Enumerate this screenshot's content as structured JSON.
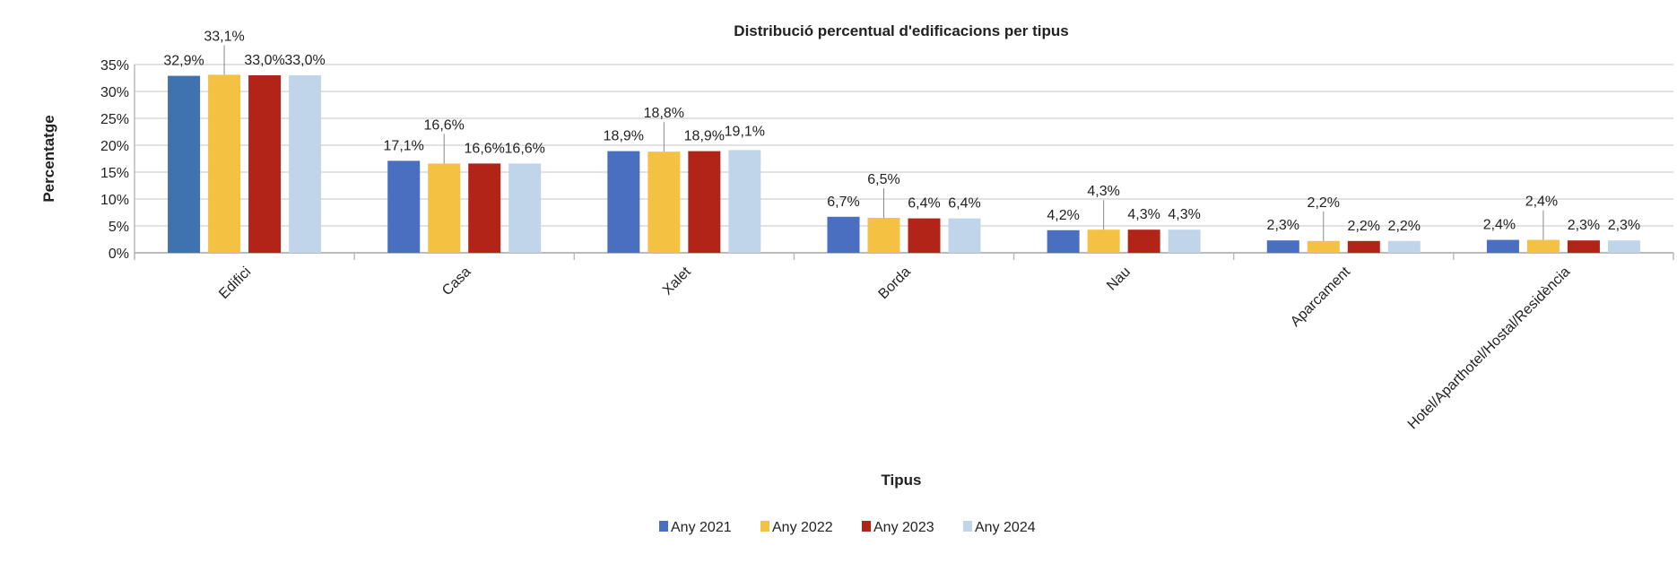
{
  "chart_data": {
    "type": "bar",
    "title": "Distribució percentual d'edificacions per tipus",
    "xlabel": "Tipus",
    "ylabel": "Percentatge",
    "ylim": [
      0,
      35
    ],
    "yticks": [
      "0%",
      "5%",
      "10%",
      "15%",
      "20%",
      "25%",
      "30%",
      "35%"
    ],
    "grid": true,
    "legend_position": "bottom",
    "categories": [
      "Edifici",
      "Casa",
      "Xalet",
      "Borda",
      "Nau",
      "Aparcament",
      "Hotel/Aparthotel/Hostal/Residència"
    ],
    "series": [
      {
        "name": "Any 2021",
        "color": "#4a6fc0",
        "values": [
          32.9,
          17.1,
          18.9,
          6.7,
          4.2,
          2.3,
          2.4
        ],
        "labels": [
          "32,9%",
          "17,1%",
          "18,9%",
          "6,7%",
          "4,2%",
          "2,3%",
          "2,4%"
        ]
      },
      {
        "name": "Any 2022",
        "color": "#f5c142",
        "values": [
          33.1,
          16.6,
          18.8,
          6.5,
          4.3,
          2.2,
          2.4
        ],
        "labels": [
          "33,1%",
          "16,6%",
          "18,8%",
          "6,5%",
          "4,3%",
          "2,2%",
          "2,4%"
        ]
      },
      {
        "name": "Any 2023",
        "color": "#b22418",
        "values": [
          33.0,
          16.6,
          18.9,
          6.4,
          4.3,
          2.2,
          2.3
        ],
        "labels": [
          "33,0%",
          "16,6%",
          "18,9%",
          "6,4%",
          "4,3%",
          "2,2%",
          "2,3%"
        ]
      },
      {
        "name": "Any 2024",
        "color": "#c0d5ea",
        "values": [
          33.0,
          16.6,
          19.1,
          6.4,
          4.3,
          2.2,
          2.3
        ],
        "labels": [
          "33,0%",
          "16,6%",
          "19,1%",
          "6,4%",
          "4,3%",
          "2,2%",
          "2,3%"
        ]
      }
    ]
  }
}
